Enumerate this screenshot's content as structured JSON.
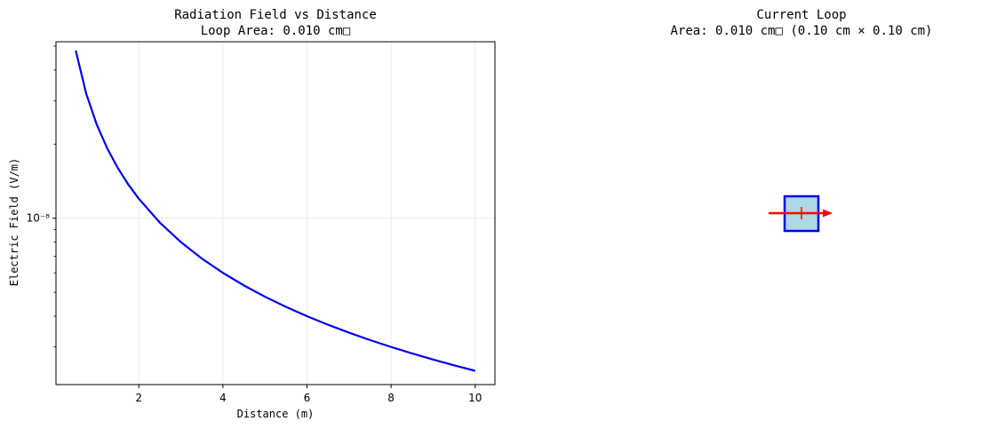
{
  "chart_data": [
    {
      "type": "line",
      "title": "Radiation Field vs Distance",
      "subtitle": "Loop Area: 0.010 cm□",
      "xlabel": "Distance (m)",
      "ylabel": "Electric Field (V/m)",
      "yscale": "log",
      "xlim": [
        0.03,
        10.47
      ],
      "ylim": [
        2.11e-09,
        5.21e-08
      ],
      "grid": true,
      "x_ticks": [
        2,
        4,
        6,
        8,
        10
      ],
      "x_tick_labels": [
        "2",
        "4",
        "6",
        "8",
        "10"
      ],
      "y_ticks": [
        1e-08
      ],
      "y_tick_labels": [
        "10⁻⁸"
      ],
      "color": "#0000ee",
      "series": [
        {
          "x": [
            0.5,
            0.75,
            1.0,
            1.25,
            1.5,
            1.75,
            2.0,
            2.5,
            3.0,
            3.5,
            4.0,
            4.5,
            5.0,
            5.5,
            6.0,
            6.5,
            7.0,
            7.5,
            8.0,
            8.5,
            9.0,
            9.5,
            10.0
          ],
          "y": [
            4.8e-08,
            3.2e-08,
            2.4e-08,
            1.92e-08,
            1.6e-08,
            1.371e-08,
            1.2e-08,
            9.6e-09,
            8e-09,
            6.857e-09,
            6e-09,
            5.333e-09,
            4.8e-09,
            4.364e-09,
            4e-09,
            3.692e-09,
            3.429e-09,
            3.2e-09,
            3e-09,
            2.824e-09,
            2.667e-09,
            2.526e-09,
            2.4e-09
          ]
        }
      ]
    },
    {
      "type": "diagram",
      "title": "Current Loop",
      "subtitle": "Area: 0.010 cm□ (0.10 cm × 0.10 cm)",
      "loop_fill": "#add8e6",
      "loop_edge": "#0000ee",
      "current_arrow_color": "#ff0000"
    }
  ]
}
